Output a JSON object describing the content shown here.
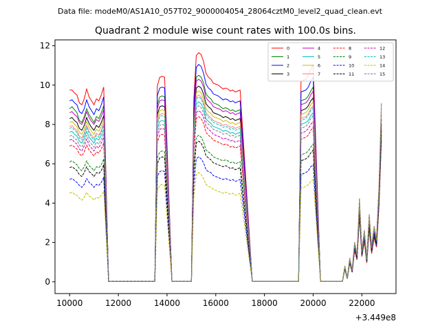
{
  "figure": {
    "suptitle": "Data file: modeM0/AS1A10_057T02_9000004054_28064cztM0_level2_quad_clean.evt"
  },
  "chart_data": {
    "type": "line",
    "title": "Quadrant 2 module wise count rates with 100.0s bins.",
    "xlabel": "",
    "ylabel": "",
    "x_offset_label": "+3.449e8",
    "xlim": [
      9400,
      23400
    ],
    "ylim": [
      -0.6,
      12.3
    ],
    "xticks": [
      10000,
      12000,
      14000,
      16000,
      18000,
      20000,
      22000
    ],
    "xtick_labels": [
      "10000",
      "12000",
      "14000",
      "16000",
      "18000",
      "20000",
      "22000"
    ],
    "yticks": [
      0,
      2,
      4,
      6,
      8,
      10,
      12
    ],
    "ytick_labels": [
      "0",
      "2",
      "4",
      "6",
      "8",
      "10",
      "12"
    ],
    "grid": false,
    "legend_position": "top-right",
    "gaps": [
      [
        11600,
        13500
      ],
      [
        14200,
        15000
      ],
      [
        17500,
        19400
      ],
      [
        20300,
        21200
      ]
    ],
    "gap_level": 0.02,
    "tail": {
      "x": [
        21200,
        21300,
        21400,
        21500,
        21600,
        21700,
        21800,
        21900,
        22000,
        22100,
        22200,
        22300,
        22400,
        22500,
        22600,
        22700,
        22800
      ],
      "y": [
        0.02,
        0.8,
        0.2,
        1.2,
        0.6,
        2.0,
        1.4,
        4.2,
        1.6,
        2.6,
        1.2,
        3.4,
        1.8,
        2.8,
        2.2,
        4.8,
        9.0
      ]
    },
    "series": [
      {
        "name": "0",
        "color": "#ff0000",
        "dashed": false,
        "values": [
          9.75,
          9.75,
          9.6,
          9.5,
          9.1,
          9.0,
          9.3,
          9.8,
          9.4,
          9.2,
          9.0,
          9.3,
          9.2,
          9.5,
          9.9,
          9.95,
          10.4,
          10.45,
          10.4,
          9.3,
          11.5,
          11.65,
          11.55,
          11.2,
          10.6,
          10.4,
          10.3,
          10.1,
          10.05,
          10.0,
          9.9,
          9.8,
          9.85,
          9.8,
          9.7,
          9.75,
          9.65,
          9.7,
          9.75,
          10.2,
          10.25,
          10.3,
          10.5,
          10.8,
          11.0
        ]
      },
      {
        "name": "1",
        "color": "#008000",
        "dashed": false,
        "values": [
          8.8,
          8.9,
          8.75,
          8.6,
          8.2,
          8.1,
          8.4,
          8.8,
          8.5,
          8.3,
          8.1,
          8.4,
          8.3,
          8.6,
          8.95,
          9.0,
          9.4,
          9.45,
          9.4,
          8.4,
          10.4,
          10.5,
          10.4,
          10.1,
          9.55,
          9.4,
          9.3,
          9.1,
          9.05,
          9.0,
          8.9,
          8.8,
          8.85,
          8.8,
          8.7,
          8.75,
          8.65,
          8.7,
          8.75,
          9.2,
          9.25,
          9.3,
          9.45,
          9.7,
          9.9
        ]
      },
      {
        "name": "2",
        "color": "#0000ff",
        "dashed": false,
        "values": [
          9.2,
          9.25,
          9.1,
          9.0,
          8.65,
          8.55,
          8.8,
          9.25,
          8.9,
          8.7,
          8.5,
          8.8,
          8.7,
          9.0,
          9.4,
          9.45,
          9.85,
          9.9,
          9.85,
          8.8,
          10.9,
          11.05,
          10.95,
          10.6,
          10.05,
          9.85,
          9.75,
          9.55,
          9.5,
          9.45,
          9.35,
          9.25,
          9.3,
          9.25,
          9.15,
          9.2,
          9.1,
          9.15,
          9.2,
          9.65,
          9.7,
          9.75,
          9.9,
          10.2,
          10.4
        ]
      },
      {
        "name": "3",
        "color": "#000000",
        "dashed": false,
        "values": [
          8.3,
          8.35,
          8.2,
          8.1,
          7.8,
          7.7,
          7.95,
          8.35,
          8.05,
          7.85,
          7.7,
          7.95,
          7.85,
          8.1,
          8.45,
          8.5,
          8.9,
          8.95,
          8.9,
          7.95,
          9.85,
          9.95,
          9.85,
          9.55,
          9.05,
          8.9,
          8.8,
          8.6,
          8.55,
          8.5,
          8.45,
          8.35,
          8.4,
          8.35,
          8.25,
          8.3,
          8.2,
          8.25,
          8.3,
          8.7,
          8.75,
          8.8,
          8.95,
          9.2,
          9.35
        ]
      },
      {
        "name": "4",
        "color": "#bf00bf",
        "dashed": false,
        "values": [
          8.6,
          8.65,
          8.5,
          8.4,
          8.1,
          8.0,
          8.25,
          8.65,
          8.35,
          8.15,
          8.0,
          8.25,
          8.15,
          8.4,
          8.75,
          8.8,
          9.2,
          9.25,
          9.2,
          8.25,
          10.2,
          10.3,
          10.2,
          9.9,
          9.35,
          9.2,
          9.1,
          8.9,
          8.85,
          8.8,
          8.75,
          8.65,
          8.7,
          8.65,
          8.55,
          8.6,
          8.5,
          8.55,
          8.6,
          9.0,
          9.05,
          9.1,
          9.25,
          9.5,
          9.7
        ]
      },
      {
        "name": "5",
        "color": "#00bfbf",
        "dashed": false,
        "values": [
          7.6,
          7.65,
          7.5,
          7.4,
          7.15,
          7.05,
          7.3,
          7.65,
          7.35,
          7.2,
          7.05,
          7.3,
          7.2,
          7.45,
          7.75,
          7.8,
          8.15,
          8.2,
          8.15,
          7.3,
          9.05,
          9.15,
          9.05,
          8.8,
          8.3,
          8.15,
          8.05,
          7.9,
          7.85,
          7.8,
          7.75,
          7.65,
          7.7,
          7.65,
          7.55,
          7.6,
          7.5,
          7.55,
          7.6,
          8.0,
          8.05,
          8.1,
          8.2,
          8.45,
          8.6
        ]
      },
      {
        "name": "6",
        "color": "#bfbf00",
        "dashed": false,
        "values": [
          8.1,
          8.15,
          8.0,
          7.9,
          7.6,
          7.5,
          7.75,
          8.15,
          7.85,
          7.65,
          7.5,
          7.75,
          7.65,
          7.9,
          8.25,
          8.3,
          8.7,
          8.75,
          8.7,
          7.75,
          9.6,
          9.7,
          9.6,
          9.3,
          8.8,
          8.65,
          8.55,
          8.4,
          8.35,
          8.3,
          8.25,
          8.15,
          8.2,
          8.15,
          8.05,
          8.1,
          8.0,
          8.05,
          8.1,
          8.5,
          8.55,
          8.6,
          8.75,
          9.0,
          9.15
        ]
      },
      {
        "name": "7",
        "color": "#ff7f7f",
        "dashed": false,
        "values": [
          7.9,
          7.95,
          7.8,
          7.7,
          7.4,
          7.3,
          7.55,
          7.95,
          7.65,
          7.45,
          7.3,
          7.55,
          7.45,
          7.7,
          8.05,
          8.1,
          8.5,
          8.55,
          8.5,
          7.55,
          9.4,
          9.5,
          9.4,
          9.1,
          8.6,
          8.45,
          8.35,
          8.2,
          8.15,
          8.1,
          8.05,
          7.95,
          8.0,
          7.95,
          7.85,
          7.9,
          7.8,
          7.85,
          7.9,
          8.3,
          8.35,
          8.4,
          8.55,
          8.8,
          8.95
        ]
      },
      {
        "name": "8",
        "color": "#ff0000",
        "dashed": true,
        "values": [
          6.9,
          6.95,
          6.85,
          6.75,
          6.5,
          6.4,
          6.6,
          6.95,
          6.7,
          6.55,
          6.4,
          6.6,
          6.55,
          6.75,
          7.05,
          7.1,
          7.45,
          7.5,
          7.45,
          6.6,
          8.3,
          8.4,
          8.3,
          8.05,
          7.6,
          7.45,
          7.35,
          7.2,
          7.15,
          7.1,
          7.05,
          6.95,
          7.0,
          6.95,
          6.85,
          6.9,
          6.8,
          6.85,
          6.9,
          7.25,
          7.3,
          7.35,
          7.45,
          7.7,
          7.85
        ]
      },
      {
        "name": "9",
        "color": "#008000",
        "dashed": true,
        "values": [
          6.1,
          6.15,
          6.05,
          5.95,
          5.75,
          5.65,
          5.85,
          6.15,
          5.9,
          5.8,
          5.65,
          5.85,
          5.8,
          5.95,
          6.25,
          6.3,
          6.6,
          6.65,
          6.6,
          5.85,
          7.35,
          7.45,
          7.35,
          7.1,
          6.7,
          6.6,
          6.5,
          6.35,
          6.3,
          6.25,
          6.2,
          6.15,
          6.2,
          6.15,
          6.05,
          6.1,
          6.0,
          6.05,
          6.1,
          6.45,
          6.5,
          6.55,
          6.65,
          6.85,
          7.0
        ]
      },
      {
        "name": "10",
        "color": "#0000ff",
        "dashed": true,
        "values": [
          5.2,
          5.25,
          5.15,
          5.05,
          4.9,
          4.8,
          4.95,
          5.25,
          5.05,
          4.95,
          4.8,
          4.95,
          4.9,
          5.05,
          5.3,
          5.35,
          5.6,
          5.65,
          5.6,
          4.95,
          6.25,
          6.35,
          6.25,
          6.05,
          5.7,
          5.6,
          5.55,
          5.4,
          5.35,
          5.3,
          5.25,
          5.2,
          5.25,
          5.2,
          5.15,
          5.2,
          5.1,
          5.15,
          5.2,
          5.45,
          5.5,
          5.55,
          5.65,
          5.85,
          5.95
        ]
      },
      {
        "name": "11",
        "color": "#000000",
        "dashed": true,
        "values": [
          5.8,
          5.85,
          5.75,
          5.65,
          5.45,
          5.35,
          5.55,
          5.85,
          5.6,
          5.5,
          5.35,
          5.55,
          5.5,
          5.65,
          5.95,
          6.0,
          6.3,
          6.35,
          6.3,
          5.55,
          7.05,
          7.15,
          7.05,
          6.8,
          6.4,
          6.3,
          6.2,
          6.05,
          6.0,
          5.95,
          5.9,
          5.85,
          5.9,
          5.85,
          5.75,
          5.8,
          5.7,
          5.75,
          5.8,
          6.15,
          6.2,
          6.25,
          6.35,
          6.55,
          6.7
        ]
      },
      {
        "name": "12",
        "color": "#bf00bf",
        "dashed": true,
        "values": [
          7.2,
          7.25,
          7.1,
          7.0,
          6.75,
          6.65,
          6.9,
          7.25,
          6.95,
          6.8,
          6.65,
          6.9,
          6.8,
          7.05,
          7.35,
          7.4,
          7.75,
          7.8,
          7.75,
          6.9,
          8.6,
          8.7,
          8.6,
          8.35,
          7.9,
          7.75,
          7.65,
          7.5,
          7.45,
          7.4,
          7.35,
          7.25,
          7.3,
          7.25,
          7.15,
          7.2,
          7.1,
          7.15,
          7.2,
          7.55,
          7.6,
          7.65,
          7.8,
          8.0,
          8.15
        ]
      },
      {
        "name": "13",
        "color": "#00bfbf",
        "dashed": true,
        "values": [
          7.8,
          7.85,
          7.7,
          7.6,
          7.3,
          7.2,
          7.45,
          7.85,
          7.55,
          7.35,
          7.2,
          7.45,
          7.35,
          7.6,
          7.95,
          8.0,
          8.4,
          8.45,
          8.4,
          7.45,
          9.3,
          9.4,
          9.3,
          9.0,
          8.5,
          8.35,
          8.25,
          8.1,
          8.05,
          8.0,
          7.95,
          7.85,
          7.9,
          7.85,
          7.75,
          7.8,
          7.7,
          7.75,
          7.8,
          8.2,
          8.25,
          8.3,
          8.45,
          8.7,
          8.85
        ]
      },
      {
        "name": "14",
        "color": "#bfbf00",
        "dashed": true,
        "values": [
          4.5,
          4.55,
          4.45,
          4.4,
          4.25,
          4.15,
          4.3,
          4.55,
          4.35,
          4.3,
          4.15,
          4.3,
          4.25,
          4.4,
          4.6,
          4.65,
          4.9,
          4.95,
          4.9,
          4.3,
          5.45,
          5.55,
          5.45,
          5.25,
          4.95,
          4.85,
          4.8,
          4.7,
          4.65,
          4.6,
          4.55,
          4.5,
          4.55,
          4.5,
          4.45,
          4.5,
          4.4,
          4.45,
          4.5,
          4.75,
          4.8,
          4.85,
          4.95,
          5.1,
          5.2
        ]
      },
      {
        "name": "15",
        "color": "#7f7f7f",
        "dashed": true,
        "values": [
          7.4,
          7.45,
          7.3,
          7.2,
          6.95,
          6.85,
          7.1,
          7.45,
          7.15,
          7.0,
          6.85,
          7.1,
          7.0,
          7.25,
          7.55,
          7.6,
          7.95,
          8.0,
          7.95,
          7.1,
          8.85,
          8.95,
          8.85,
          8.6,
          8.15,
          8.0,
          7.9,
          7.75,
          7.7,
          7.65,
          7.6,
          7.5,
          7.55,
          7.5,
          7.4,
          7.45,
          7.35,
          7.4,
          7.45,
          7.8,
          7.85,
          7.9,
          8.05,
          8.3,
          8.45
        ]
      }
    ],
    "x": [
      10000,
      10100,
      10200,
      10300,
      10400,
      10500,
      10600,
      10700,
      10800,
      10900,
      11000,
      11100,
      11200,
      11300,
      11400,
      13600,
      13700,
      13800,
      13900,
      15100,
      15200,
      15300,
      15400,
      15500,
      15600,
      15700,
      15800,
      15900,
      16000,
      16100,
      16200,
      16300,
      16400,
      16500,
      16600,
      16700,
      16800,
      16900,
      17000,
      19500,
      19600,
      19700,
      19800,
      19900,
      20000
    ]
  }
}
